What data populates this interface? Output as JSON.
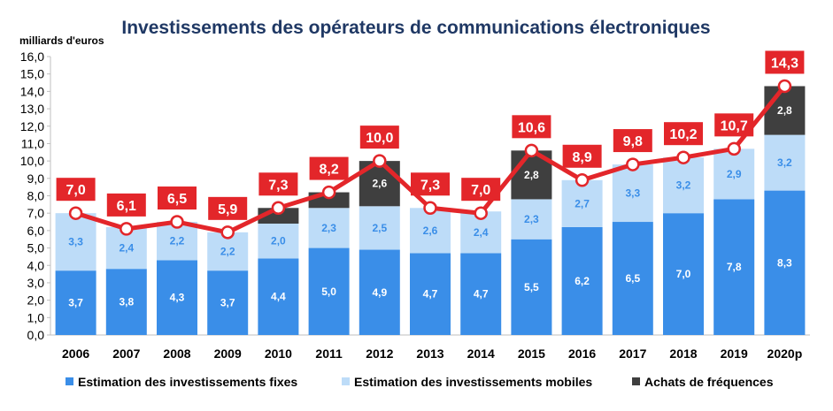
{
  "chart_data": {
    "type": "bar",
    "stacked": true,
    "title": "Investissements des opérateurs de communications électroniques",
    "ylabel": "milliards d'euros",
    "xlabel": "",
    "ylim": [
      0,
      16
    ],
    "ytick_step": 1,
    "grid": false,
    "legend_position": "bottom",
    "categories": [
      "2006",
      "2007",
      "2008",
      "2009",
      "2010",
      "2011",
      "2012",
      "2013",
      "2014",
      "2015",
      "2016",
      "2017",
      "2018",
      "2019",
      "2020p"
    ],
    "series": [
      {
        "name": "Estimation des investissements fixes",
        "color": "#3a8ee8",
        "label_color": "#ffffff",
        "values": [
          3.7,
          3.8,
          4.3,
          3.7,
          4.4,
          5.0,
          4.9,
          4.7,
          4.7,
          5.5,
          6.2,
          6.5,
          7.0,
          7.8,
          8.3
        ],
        "labels_shown": true
      },
      {
        "name": "Estimation des investissements  mobiles",
        "color": "#bddcf8",
        "label_color": "#3a8ee8",
        "values": [
          3.3,
          2.4,
          2.2,
          2.2,
          2.0,
          2.3,
          2.5,
          2.6,
          2.4,
          2.3,
          2.7,
          3.3,
          3.2,
          2.9,
          3.2
        ],
        "labels_shown": true
      },
      {
        "name": "Achats de fréquences",
        "color": "#3f3f3f",
        "label_color": "#ffffff",
        "values": [
          0,
          0,
          0,
          0,
          0.9,
          0.9,
          2.6,
          0,
          0,
          2.8,
          0,
          0,
          0,
          0,
          2.8
        ],
        "labels": [
          "",
          "",
          "",
          "",
          "",
          "",
          "2,6",
          "",
          "",
          "2,8",
          "",
          "",
          "",
          "",
          "2,8"
        ]
      }
    ],
    "total_line": {
      "color": "#e3262a",
      "values": [
        7.0,
        6.1,
        6.5,
        5.9,
        7.3,
        8.2,
        10.0,
        7.3,
        7.0,
        10.6,
        8.9,
        9.8,
        10.2,
        10.7,
        14.3
      ]
    }
  }
}
